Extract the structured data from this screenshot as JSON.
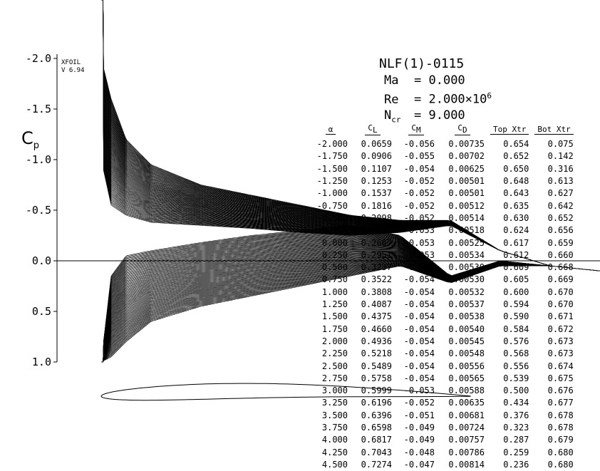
{
  "header": {
    "airfoil": "NLF(1)-0115",
    "mach_label": "Ma",
    "mach_value": "0.000",
    "re_label": "Re",
    "re_value": "2.000",
    "re_times": "×10",
    "re_exp": "6",
    "ncr_label": "N",
    "ncr_sub": "cr",
    "ncr_value": "9.000"
  },
  "program": {
    "name": "XFOIL",
    "version": "V 6.94"
  },
  "axis": {
    "ylabel_main": "C",
    "ylabel_sub": "p",
    "ticks": [
      "-2.0",
      "-1.5",
      "-1.0",
      "-0.5",
      "0.0",
      "0.5",
      "1.0"
    ]
  },
  "table": {
    "columns": [
      {
        "main": "α",
        "sub": ""
      },
      {
        "main": "C",
        "sub": "L"
      },
      {
        "main": "C",
        "sub": "M"
      },
      {
        "main": "C",
        "sub": "D"
      },
      {
        "main": "Top Xtr",
        "sub": ""
      },
      {
        "main": "Bot Xtr",
        "sub": ""
      }
    ],
    "rows": [
      [
        "-2.000",
        "0.0659",
        "-0.056",
        "0.00735",
        "0.654",
        "0.075"
      ],
      [
        "-1.750",
        "0.0906",
        "-0.055",
        "0.00702",
        "0.652",
        "0.142"
      ],
      [
        "-1.500",
        "0.1107",
        "-0.054",
        "0.00625",
        "0.650",
        "0.316"
      ],
      [
        "-1.250",
        "0.1253",
        "-0.052",
        "0.00501",
        "0.648",
        "0.613"
      ],
      [
        "-1.000",
        "0.1537",
        "-0.052",
        "0.00501",
        "0.643",
        "0.627"
      ],
      [
        "-0.750",
        "0.1816",
        "-0.052",
        "0.00512",
        "0.635",
        "0.642"
      ],
      [
        "-0.500",
        "0.2098",
        "-0.052",
        "0.00514",
        "0.630",
        "0.652"
      ],
      [
        "-0.250",
        "0.2386",
        "-0.053",
        "0.00518",
        "0.624",
        "0.656"
      ],
      [
        "0.000",
        "0.2667",
        "-0.053",
        "0.00525",
        "0.617",
        "0.659"
      ],
      [
        "0.250",
        "0.2951",
        "-0.053",
        "0.00534",
        "0.612",
        "0.660"
      ],
      [
        "0.500",
        "0.3237",
        "-0.053",
        "0.00530",
        "0.609",
        "0.668"
      ],
      [
        "0.750",
        "0.3522",
        "-0.054",
        "0.00530",
        "0.605",
        "0.669"
      ],
      [
        "1.000",
        "0.3808",
        "-0.054",
        "0.00532",
        "0.600",
        "0.670"
      ],
      [
        "1.250",
        "0.4087",
        "-0.054",
        "0.00537",
        "0.594",
        "0.670"
      ],
      [
        "1.500",
        "0.4375",
        "-0.054",
        "0.00538",
        "0.590",
        "0.671"
      ],
      [
        "1.750",
        "0.4660",
        "-0.054",
        "0.00540",
        "0.584",
        "0.672"
      ],
      [
        "2.000",
        "0.4936",
        "-0.054",
        "0.00545",
        "0.576",
        "0.673"
      ],
      [
        "2.250",
        "0.5218",
        "-0.054",
        "0.00548",
        "0.568",
        "0.673"
      ],
      [
        "2.500",
        "0.5489",
        "-0.054",
        "0.00556",
        "0.556",
        "0.674"
      ],
      [
        "2.750",
        "0.5758",
        "-0.054",
        "0.00565",
        "0.539",
        "0.675"
      ],
      [
        "3.000",
        "0.5999",
        "-0.053",
        "0.00588",
        "0.500",
        "0.676"
      ],
      [
        "3.250",
        "0.6196",
        "-0.052",
        "0.00635",
        "0.434",
        "0.677"
      ],
      [
        "3.500",
        "0.6396",
        "-0.051",
        "0.00681",
        "0.376",
        "0.678"
      ],
      [
        "3.750",
        "0.6598",
        "-0.049",
        "0.00724",
        "0.323",
        "0.678"
      ],
      [
        "4.000",
        "0.6817",
        "-0.049",
        "0.00757",
        "0.287",
        "0.679"
      ],
      [
        "4.250",
        "0.7043",
        "-0.048",
        "0.00786",
        "0.259",
        "0.680"
      ],
      [
        "4.500",
        "0.7274",
        "-0.047",
        "0.00814",
        "0.236",
        "0.680"
      ]
    ]
  },
  "chart_data": {
    "type": "line",
    "title": "NLF(1)-0115",
    "xlabel": "",
    "ylabel": "Cp",
    "ylim": [
      -2.0,
      1.0
    ],
    "y_inverted": true,
    "x": [
      0.0,
      0.02,
      0.05,
      0.1,
      0.2,
      0.3,
      0.4,
      0.5,
      0.6,
      0.7,
      0.8,
      0.9,
      1.0
    ],
    "alpha_values": [
      -2.0,
      -1.75,
      -1.5,
      -1.25,
      -1.0,
      -0.75,
      -0.5,
      -0.25,
      0.0,
      0.25,
      0.5,
      0.75,
      1.0,
      1.25,
      1.5,
      1.75,
      2.0,
      2.25,
      2.5,
      2.75,
      3.0,
      3.25,
      3.5,
      3.75,
      4.0,
      4.25,
      4.5
    ],
    "upper_surface_cp_envelope": {
      "alpha_min": [
        -1.0,
        -0.55,
        -0.45,
        -0.38,
        -0.35,
        -0.32,
        -0.28,
        -0.25,
        -0.28,
        -0.35,
        -0.1,
        0.05,
        0.1
      ],
      "alpha_max": [
        -2.0,
        -1.6,
        -1.2,
        -0.95,
        -0.75,
        -0.65,
        -0.55,
        -0.45,
        -0.4,
        -0.4,
        -0.1,
        0.05,
        0.1
      ]
    },
    "lower_surface_cp_envelope": {
      "alpha_min": [
        1.0,
        0.15,
        -0.05,
        -0.1,
        -0.18,
        -0.25,
        -0.3,
        -0.35,
        -0.25,
        0.15,
        0.0,
        0.05,
        0.1
      ],
      "alpha_max": [
        1.0,
        0.95,
        0.8,
        0.6,
        0.45,
        0.35,
        0.25,
        0.15,
        0.05,
        0.22,
        0.05,
        0.05,
        0.1
      ]
    },
    "airfoil_outline": true,
    "grid": false,
    "legend": "none"
  }
}
